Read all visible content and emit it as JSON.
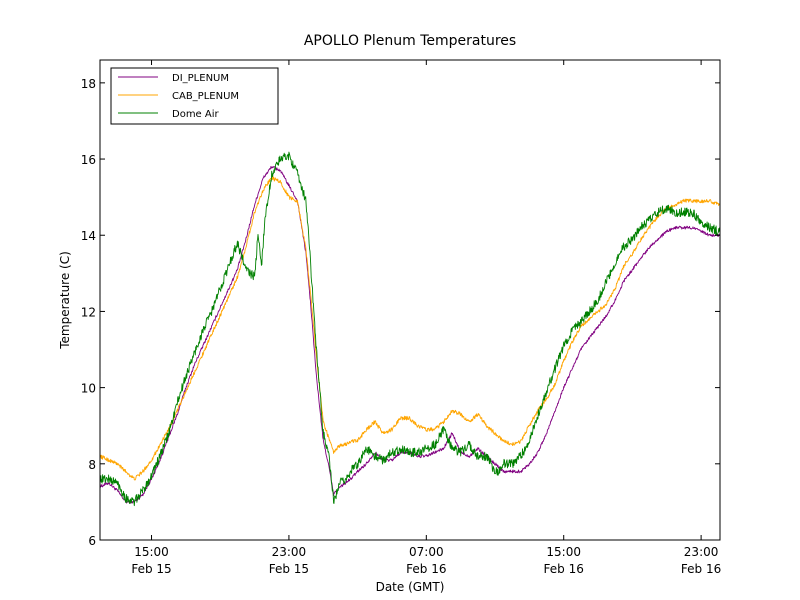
{
  "chart_data": {
    "type": "line",
    "title": "APOLLO Plenum Temperatures",
    "xlabel": "Date (GMT)",
    "ylabel": "Temperature (C)",
    "x_unit": "hours since Feb 15 00:00 GMT",
    "xlim": [
      12.0,
      48.1
    ],
    "ylim": [
      6,
      18.6
    ],
    "grid": false,
    "legend_position": "top-left",
    "x_ticks": [
      {
        "value": 15,
        "label": [
          "15:00",
          "Feb 15"
        ]
      },
      {
        "value": 23,
        "label": [
          "23:00",
          "Feb 15"
        ]
      },
      {
        "value": 31,
        "label": [
          "07:00",
          "Feb 16"
        ]
      },
      {
        "value": 39,
        "label": [
          "15:00",
          "Feb 16"
        ]
      },
      {
        "value": 47,
        "label": [
          "23:00",
          "Feb 16"
        ]
      }
    ],
    "y_ticks": [
      {
        "value": 6,
        "label": "6"
      },
      {
        "value": 8,
        "label": "8"
      },
      {
        "value": 10,
        "label": "10"
      },
      {
        "value": 12,
        "label": "12"
      },
      {
        "value": 14,
        "label": "14"
      },
      {
        "value": 16,
        "label": "16"
      },
      {
        "value": 18,
        "label": "18"
      }
    ],
    "series": [
      {
        "name": "DI_PLENUM",
        "color": "#800080",
        "noise": 0.04,
        "x": [
          12.0,
          12.5,
          13.0,
          13.5,
          14.0,
          14.5,
          15.0,
          15.5,
          16.0,
          16.5,
          17.0,
          17.5,
          18.0,
          18.5,
          19.0,
          19.5,
          20.0,
          20.5,
          21.0,
          21.5,
          22.0,
          22.5,
          23.0,
          23.5,
          24.0,
          24.3,
          24.6,
          25.0,
          25.3,
          25.6,
          26.0,
          26.3,
          26.6,
          27.0,
          27.5,
          28.0,
          28.5,
          29.0,
          29.5,
          30.0,
          30.5,
          31.0,
          31.5,
          32.0,
          32.5,
          33.0,
          33.5,
          34.0,
          34.5,
          35.0,
          35.5,
          36.0,
          36.5,
          37.0,
          37.5,
          38.0,
          38.5,
          39.0,
          39.5,
          40.0,
          40.5,
          41.0,
          41.5,
          42.0,
          42.5,
          43.0,
          43.5,
          44.0,
          44.5,
          45.0,
          45.5,
          46.0,
          46.5,
          47.0,
          47.5,
          48.1
        ],
        "y": [
          7.4,
          7.5,
          7.3,
          7.0,
          7.0,
          7.2,
          7.6,
          8.1,
          8.7,
          9.3,
          10.0,
          10.6,
          11.1,
          11.6,
          12.1,
          12.6,
          13.1,
          13.9,
          14.8,
          15.5,
          15.8,
          15.7,
          15.3,
          14.9,
          13.5,
          12.0,
          10.3,
          8.6,
          8.0,
          7.2,
          7.4,
          7.5,
          7.6,
          7.8,
          8.0,
          8.3,
          8.1,
          8.1,
          8.3,
          8.3,
          8.2,
          8.2,
          8.3,
          8.4,
          8.8,
          8.3,
          8.2,
          8.4,
          8.2,
          8.0,
          7.8,
          7.8,
          7.8,
          8.0,
          8.3,
          8.8,
          9.4,
          10.0,
          10.5,
          11.0,
          11.3,
          11.6,
          11.9,
          12.3,
          12.8,
          13.1,
          13.4,
          13.7,
          13.9,
          14.1,
          14.2,
          14.2,
          14.2,
          14.1,
          14.0,
          14.0
        ]
      },
      {
        "name": "CAB_PLENUM",
        "color": "#ffa500",
        "noise": 0.05,
        "x": [
          12.0,
          12.5,
          13.0,
          13.5,
          14.0,
          14.5,
          15.0,
          15.5,
          16.0,
          16.5,
          17.0,
          17.5,
          18.0,
          18.5,
          19.0,
          19.5,
          20.0,
          20.5,
          21.0,
          21.5,
          22.0,
          22.5,
          23.0,
          23.5,
          24.0,
          24.3,
          24.6,
          25.0,
          25.3,
          25.6,
          26.0,
          26.3,
          26.6,
          27.0,
          27.5,
          28.0,
          28.5,
          29.0,
          29.5,
          30.0,
          30.5,
          31.0,
          31.5,
          32.0,
          32.5,
          33.0,
          33.5,
          34.0,
          34.5,
          35.0,
          35.5,
          36.0,
          36.5,
          37.0,
          37.5,
          38.0,
          38.5,
          39.0,
          39.5,
          40.0,
          40.5,
          41.0,
          41.5,
          42.0,
          42.5,
          43.0,
          43.5,
          44.0,
          44.5,
          45.0,
          45.5,
          46.0,
          46.5,
          47.0,
          47.5,
          48.1
        ],
        "y": [
          8.2,
          8.1,
          8.0,
          7.8,
          7.6,
          7.8,
          8.1,
          8.5,
          8.9,
          9.4,
          9.9,
          10.4,
          10.9,
          11.4,
          11.9,
          12.4,
          12.9,
          13.7,
          14.6,
          15.2,
          15.5,
          15.4,
          15.0,
          14.9,
          13.6,
          12.3,
          10.8,
          9.1,
          8.7,
          8.3,
          8.5,
          8.5,
          8.6,
          8.6,
          8.9,
          9.1,
          8.8,
          8.9,
          9.2,
          9.2,
          9.0,
          8.9,
          8.9,
          9.1,
          9.4,
          9.3,
          9.1,
          9.3,
          9.0,
          8.8,
          8.6,
          8.5,
          8.6,
          9.0,
          9.4,
          9.7,
          10.1,
          10.7,
          11.2,
          11.6,
          11.8,
          12.0,
          12.2,
          12.6,
          13.2,
          13.5,
          13.9,
          14.2,
          14.5,
          14.7,
          14.8,
          14.9,
          14.9,
          14.9,
          14.9,
          14.8
        ]
      },
      {
        "name": "Dome Air",
        "color": "#008000",
        "noise": 0.12,
        "x": [
          12.0,
          12.5,
          13.0,
          13.5,
          14.0,
          14.5,
          15.0,
          15.5,
          16.0,
          16.5,
          17.0,
          17.5,
          18.0,
          18.5,
          19.0,
          19.5,
          20.0,
          20.5,
          21.0,
          21.2,
          21.4,
          21.6,
          21.8,
          22.0,
          22.5,
          23.0,
          23.5,
          24.0,
          24.3,
          24.6,
          25.0,
          25.3,
          25.6,
          26.0,
          26.3,
          26.6,
          27.0,
          27.5,
          28.0,
          28.5,
          29.0,
          29.5,
          30.0,
          30.5,
          31.0,
          31.5,
          32.0,
          32.5,
          33.0,
          33.5,
          34.0,
          34.5,
          35.0,
          35.2,
          35.5,
          36.0,
          36.5,
          37.0,
          37.5,
          38.0,
          38.5,
          39.0,
          39.5,
          40.0,
          40.5,
          41.0,
          41.5,
          42.0,
          42.5,
          43.0,
          43.5,
          44.0,
          44.5,
          45.0,
          45.5,
          46.0,
          46.5,
          47.0,
          47.5,
          48.1
        ],
        "y": [
          7.6,
          7.6,
          7.5,
          7.1,
          7.0,
          7.3,
          7.7,
          8.2,
          8.8,
          9.6,
          10.3,
          10.9,
          11.5,
          12.0,
          12.6,
          13.2,
          13.8,
          13.1,
          12.9,
          14.0,
          13.2,
          14.4,
          15.0,
          15.6,
          16.0,
          16.1,
          15.6,
          14.9,
          13.0,
          11.0,
          8.8,
          8.3,
          7.0,
          7.5,
          7.6,
          7.8,
          8.0,
          8.4,
          8.2,
          8.1,
          8.3,
          8.4,
          8.3,
          8.3,
          8.4,
          8.5,
          8.9,
          8.4,
          8.3,
          8.5,
          8.2,
          8.2,
          7.8,
          7.8,
          8.0,
          8.0,
          8.2,
          8.6,
          9.3,
          9.9,
          10.5,
          11.1,
          11.5,
          11.7,
          12.0,
          12.3,
          12.8,
          13.3,
          13.7,
          13.9,
          14.2,
          14.4,
          14.6,
          14.7,
          14.6,
          14.6,
          14.6,
          14.3,
          14.2,
          14.1
        ]
      }
    ]
  }
}
